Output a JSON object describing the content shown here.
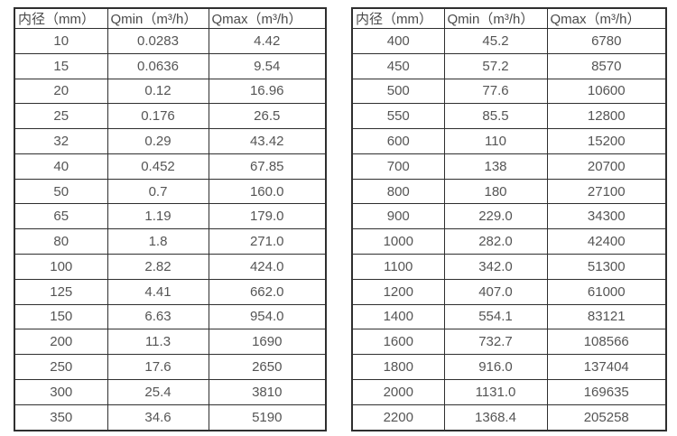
{
  "colors": {
    "background": "#ffffff",
    "border": "#2f2f2f",
    "header_text": "#4a4a4a",
    "cell_text": "#555555"
  },
  "tables": [
    {
      "name": "flow-spec-table-small-diameters",
      "headers": [
        "内径（mm）",
        "Qmin（m³/h）",
        "Qmax（m³/h）"
      ],
      "rows": [
        [
          "10",
          "0.0283",
          "4.42"
        ],
        [
          "15",
          "0.0636",
          "9.54"
        ],
        [
          "20",
          "0.12",
          "16.96"
        ],
        [
          "25",
          "0.176",
          "26.5"
        ],
        [
          "32",
          "0.29",
          "43.42"
        ],
        [
          "40",
          "0.452",
          "67.85"
        ],
        [
          "50",
          "0.7",
          "160.0"
        ],
        [
          "65",
          "1.19",
          "179.0"
        ],
        [
          "80",
          "1.8",
          "271.0"
        ],
        [
          "100",
          "2.82",
          "424.0"
        ],
        [
          "125",
          "4.41",
          "662.0"
        ],
        [
          "150",
          "6.63",
          "954.0"
        ],
        [
          "200",
          "11.3",
          "1690"
        ],
        [
          "250",
          "17.6",
          "2650"
        ],
        [
          "300",
          "25.4",
          "3810"
        ],
        [
          "350",
          "34.6",
          "5190"
        ]
      ]
    },
    {
      "name": "flow-spec-table-large-diameters",
      "headers": [
        "内径（mm）",
        "Qmin（m³/h）",
        "Qmax（m³/h）"
      ],
      "rows": [
        [
          "400",
          "45.2",
          "6780"
        ],
        [
          "450",
          "57.2",
          "8570"
        ],
        [
          "500",
          "77.6",
          "10600"
        ],
        [
          "550",
          "85.5",
          "12800"
        ],
        [
          "600",
          "110",
          "15200"
        ],
        [
          "700",
          "138",
          "20700"
        ],
        [
          "800",
          "180",
          "27100"
        ],
        [
          "900",
          "229.0",
          "34300"
        ],
        [
          "1000",
          "282.0",
          "42400"
        ],
        [
          "1100",
          "342.0",
          "51300"
        ],
        [
          "1200",
          "407.0",
          "61000"
        ],
        [
          "1400",
          "554.1",
          "83121"
        ],
        [
          "1600",
          "732.7",
          "108566"
        ],
        [
          "1800",
          "916.0",
          "137404"
        ],
        [
          "2000",
          "1131.0",
          "169635"
        ],
        [
          "2200",
          "1368.4",
          "205258"
        ]
      ]
    }
  ]
}
